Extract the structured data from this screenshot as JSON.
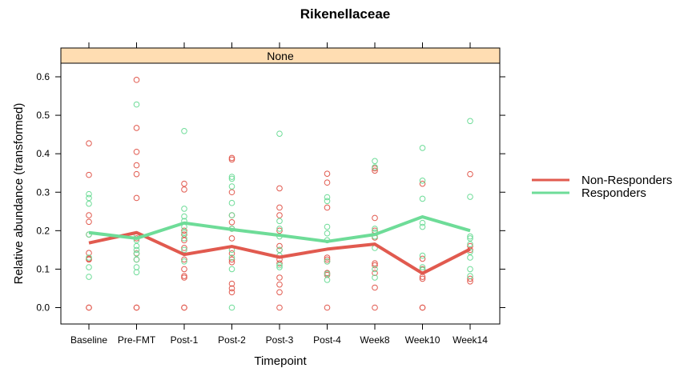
{
  "colors": {
    "non_responders": "#E15A4F",
    "responders": "#6EDC98",
    "strip": "#FFDDB2"
  },
  "chart_data": {
    "type": "scatter",
    "title": "Rikenellaceae",
    "strip": "None",
    "xlabel": "Timepoint",
    "ylabel": "Relative abundance (transformed)",
    "ylim": [
      -0.045,
      0.635
    ],
    "yticks": [
      0.0,
      0.1,
      0.2,
      0.3,
      0.4,
      0.5,
      0.6
    ],
    "ytick_labels": [
      "0.0",
      "0.1",
      "0.2",
      "0.3",
      "0.4",
      "0.5",
      "0.6"
    ],
    "categories": [
      "Baseline",
      "Pre-FMT",
      "Post-1",
      "Post-2",
      "Post-3",
      "Post-4",
      "Week8",
      "Week10",
      "Week14"
    ],
    "legend_position": "right",
    "series": [
      {
        "name": "Non-Responders",
        "color": "#E15A4F",
        "mean_line": [
          0.168,
          0.195,
          0.138,
          0.159,
          0.131,
          0.152,
          0.165,
          0.089,
          0.152
        ],
        "points": [
          [
            0.427,
            0.345,
            0.24,
            0.223,
            0.19,
            0.142,
            0.127,
            0.125,
            0.0,
            0.0
          ],
          [
            0.592,
            0.467,
            0.405,
            0.37,
            0.347,
            0.285,
            0.18,
            0.141,
            0.125,
            0.0,
            0.0
          ],
          [
            0.322,
            0.307,
            0.2,
            0.19,
            0.175,
            0.155,
            0.125,
            0.1,
            0.082,
            0.078,
            0.0,
            0.0
          ],
          [
            0.389,
            0.385,
            0.3,
            0.24,
            0.222,
            0.205,
            0.18,
            0.141,
            0.125,
            0.118,
            0.062,
            0.05,
            0.04
          ],
          [
            0.31,
            0.26,
            0.24,
            0.2,
            0.16,
            0.15,
            0.125,
            0.115,
            0.078,
            0.06,
            0.04,
            0.0
          ],
          [
            0.348,
            0.325,
            0.26,
            0.13,
            0.125,
            0.12,
            0.09,
            0.085,
            0.0
          ],
          [
            0.362,
            0.356,
            0.233,
            0.2,
            0.182,
            0.115,
            0.11,
            0.09,
            0.052,
            0.0
          ],
          [
            0.322,
            0.127,
            0.1,
            0.08,
            0.075,
            0.0,
            0.0
          ],
          [
            0.347,
            0.16,
            0.15,
            0.075,
            0.068
          ]
        ]
      },
      {
        "name": "Responders",
        "color": "#6EDC98",
        "mean_line": [
          0.195,
          0.18,
          0.22,
          0.203,
          0.188,
          0.172,
          0.19,
          0.236,
          0.2
        ],
        "points": [
          [
            0.295,
            0.285,
            0.27,
            0.19,
            0.13,
            0.105,
            0.08
          ],
          [
            0.528,
            0.19,
            0.175,
            0.16,
            0.15,
            0.14,
            0.125,
            0.105,
            0.092
          ],
          [
            0.459,
            0.257,
            0.237,
            0.225,
            0.21,
            0.195,
            0.18,
            0.15,
            0.12
          ],
          [
            0.34,
            0.335,
            0.315,
            0.272,
            0.24,
            0.205,
            0.15,
            0.13,
            0.1,
            0.0
          ],
          [
            0.452,
            0.225,
            0.205,
            0.185,
            0.15,
            0.135,
            0.11,
            0.105
          ],
          [
            0.287,
            0.277,
            0.21,
            0.193,
            0.175,
            0.12,
            0.088,
            0.072
          ],
          [
            0.381,
            0.365,
            0.205,
            0.195,
            0.185,
            0.155,
            0.1,
            0.078
          ],
          [
            0.415,
            0.33,
            0.283,
            0.22,
            0.21,
            0.135,
            0.105,
            0.098
          ],
          [
            0.485,
            0.288,
            0.185,
            0.18,
            0.165,
            0.145,
            0.13,
            0.1,
            0.082
          ]
        ]
      }
    ]
  }
}
